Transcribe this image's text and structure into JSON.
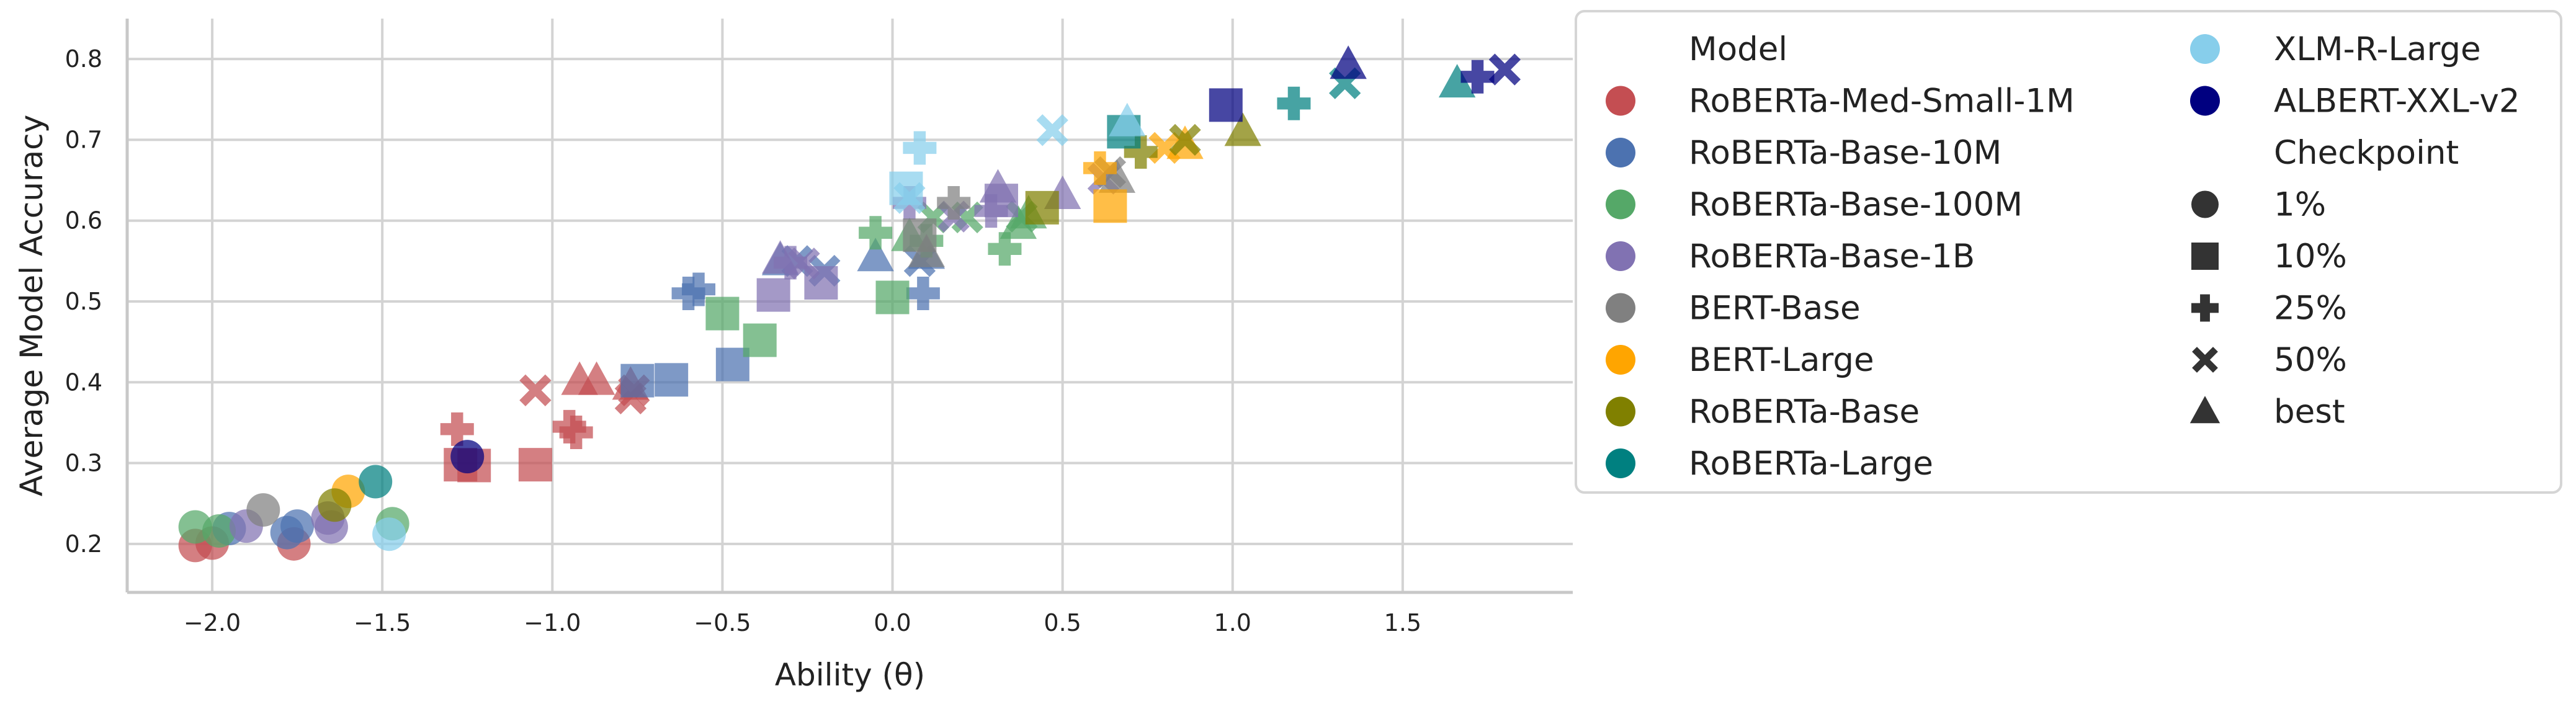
{
  "chart_data": {
    "type": "scatter",
    "xlabel": "Ability (θ)",
    "ylabel": "Average Model Accuracy",
    "xlim": [
      -2.25,
      2.0
    ],
    "ylim": [
      0.14,
      0.85
    ],
    "xticks": [
      -2.0,
      -1.5,
      -1.0,
      -0.5,
      0.0,
      0.5,
      1.0,
      1.5
    ],
    "xtick_labels": [
      "−2.0",
      "−1.5",
      "−1.0",
      "−0.5",
      "0.0",
      "0.5",
      "1.0",
      "1.5"
    ],
    "yticks": [
      0.2,
      0.3,
      0.4,
      0.5,
      0.6,
      0.7,
      0.8
    ],
    "ytick_labels": [
      "0.2",
      "0.3",
      "0.4",
      "0.5",
      "0.6",
      "0.7",
      "0.8"
    ],
    "grid": true,
    "legend": {
      "placement": "right",
      "model_title": "Model",
      "checkpoint_title": "Checkpoint",
      "models": [
        {
          "name": "RoBERTa-Med-Small-1M",
          "color": "#c44e52"
        },
        {
          "name": "RoBERTa-Base-10M",
          "color": "#4c72b0"
        },
        {
          "name": "RoBERTa-Base-100M",
          "color": "#55a868"
        },
        {
          "name": "RoBERTa-Base-1B",
          "color": "#8172b2"
        },
        {
          "name": "BERT-Base",
          "color": "#808080"
        },
        {
          "name": "BERT-Large",
          "color": "#ffa500"
        },
        {
          "name": "RoBERTa-Base",
          "color": "#808000"
        },
        {
          "name": "RoBERTa-Large",
          "color": "#008080"
        },
        {
          "name": "XLM-R-Large",
          "color": "#87ceeb"
        },
        {
          "name": "ALBERT-XXL-v2",
          "color": "#000080"
        }
      ],
      "checkpoints": [
        {
          "name": "1%",
          "marker": "circle"
        },
        {
          "name": "10%",
          "marker": "square"
        },
        {
          "name": "25%",
          "marker": "plus"
        },
        {
          "name": "50%",
          "marker": "x"
        },
        {
          "name": "best",
          "marker": "triangle"
        }
      ]
    },
    "series": [
      {
        "name": "RoBERTa-Med-Small-1M",
        "color": "#c44e52",
        "points": [
          {
            "x": -2.05,
            "y": 0.198,
            "m": "circle"
          },
          {
            "x": -2.0,
            "y": 0.201,
            "m": "circle"
          },
          {
            "x": -1.76,
            "y": 0.2,
            "m": "circle"
          },
          {
            "x": -1.27,
            "y": 0.298,
            "m": "square"
          },
          {
            "x": -1.23,
            "y": 0.297,
            "m": "square"
          },
          {
            "x": -1.05,
            "y": 0.298,
            "m": "square"
          },
          {
            "x": -1.28,
            "y": 0.342,
            "m": "plus"
          },
          {
            "x": -0.95,
            "y": 0.345,
            "m": "plus"
          },
          {
            "x": -0.93,
            "y": 0.338,
            "m": "plus"
          },
          {
            "x": -1.05,
            "y": 0.39,
            "m": "x"
          },
          {
            "x": -0.77,
            "y": 0.38,
            "m": "x"
          },
          {
            "x": -0.76,
            "y": 0.39,
            "m": "x"
          },
          {
            "x": -0.92,
            "y": 0.402,
            "m": "triangle"
          },
          {
            "x": -0.87,
            "y": 0.402,
            "m": "triangle"
          },
          {
            "x": -0.77,
            "y": 0.396,
            "m": "triangle"
          }
        ]
      },
      {
        "name": "RoBERTa-Base-10M",
        "color": "#4c72b0",
        "points": [
          {
            "x": -1.95,
            "y": 0.219,
            "m": "circle"
          },
          {
            "x": -1.78,
            "y": 0.214,
            "m": "circle"
          },
          {
            "x": -1.75,
            "y": 0.222,
            "m": "circle"
          },
          {
            "x": -0.75,
            "y": 0.402,
            "m": "square"
          },
          {
            "x": -0.65,
            "y": 0.403,
            "m": "square"
          },
          {
            "x": -0.47,
            "y": 0.422,
            "m": "square"
          },
          {
            "x": -0.6,
            "y": 0.51,
            "m": "plus"
          },
          {
            "x": -0.57,
            "y": 0.515,
            "m": "plus"
          },
          {
            "x": 0.09,
            "y": 0.51,
            "m": "plus"
          },
          {
            "x": -0.28,
            "y": 0.55,
            "m": "x"
          },
          {
            "x": -0.2,
            "y": 0.538,
            "m": "x"
          },
          {
            "x": 0.08,
            "y": 0.55,
            "m": "x"
          },
          {
            "x": -0.33,
            "y": 0.55,
            "m": "triangle"
          },
          {
            "x": -0.05,
            "y": 0.555,
            "m": "triangle"
          },
          {
            "x": 0.1,
            "y": 0.558,
            "m": "triangle"
          }
        ]
      },
      {
        "name": "RoBERTa-Base-100M",
        "color": "#55a868",
        "points": [
          {
            "x": -2.05,
            "y": 0.221,
            "m": "circle"
          },
          {
            "x": -1.98,
            "y": 0.216,
            "m": "circle"
          },
          {
            "x": -1.47,
            "y": 0.225,
            "m": "circle"
          },
          {
            "x": -0.5,
            "y": 0.485,
            "m": "square"
          },
          {
            "x": -0.39,
            "y": 0.452,
            "m": "square"
          },
          {
            "x": 0.0,
            "y": 0.505,
            "m": "square"
          },
          {
            "x": -0.05,
            "y": 0.585,
            "m": "plus"
          },
          {
            "x": 0.1,
            "y": 0.575,
            "m": "plus"
          },
          {
            "x": 0.33,
            "y": 0.565,
            "m": "plus"
          },
          {
            "x": 0.12,
            "y": 0.604,
            "m": "x"
          },
          {
            "x": 0.22,
            "y": 0.604,
            "m": "x"
          },
          {
            "x": 0.38,
            "y": 0.605,
            "m": "x"
          },
          {
            "x": 0.05,
            "y": 0.58,
            "m": "triangle"
          },
          {
            "x": 0.37,
            "y": 0.595,
            "m": "triangle"
          },
          {
            "x": 0.4,
            "y": 0.608,
            "m": "triangle"
          }
        ]
      },
      {
        "name": "RoBERTa-Base-1B",
        "color": "#8172b2",
        "points": [
          {
            "x": -1.9,
            "y": 0.222,
            "m": "circle"
          },
          {
            "x": -1.65,
            "y": 0.221,
            "m": "circle"
          },
          {
            "x": -1.66,
            "y": 0.232,
            "m": "circle"
          },
          {
            "x": -0.35,
            "y": 0.508,
            "m": "square"
          },
          {
            "x": -0.21,
            "y": 0.523,
            "m": "square"
          },
          {
            "x": 0.32,
            "y": 0.625,
            "m": "square"
          },
          {
            "x": -0.3,
            "y": 0.548,
            "m": "plus"
          },
          {
            "x": 0.05,
            "y": 0.622,
            "m": "plus"
          },
          {
            "x": 0.29,
            "y": 0.612,
            "m": "plus"
          },
          {
            "x": -0.26,
            "y": 0.547,
            "m": "x"
          },
          {
            "x": 0.18,
            "y": 0.605,
            "m": "x"
          },
          {
            "x": 0.62,
            "y": 0.652,
            "m": "x"
          },
          {
            "x": -0.33,
            "y": 0.552,
            "m": "triangle"
          },
          {
            "x": 0.31,
            "y": 0.64,
            "m": "triangle"
          },
          {
            "x": 0.5,
            "y": 0.632,
            "m": "triangle"
          }
        ]
      },
      {
        "name": "BERT-Base",
        "color": "#808080",
        "points": [
          {
            "x": -1.85,
            "y": 0.242,
            "m": "circle"
          },
          {
            "x": 0.08,
            "y": 0.582,
            "m": "square"
          },
          {
            "x": 0.18,
            "y": 0.622,
            "m": "plus"
          },
          {
            "x": 0.64,
            "y": 0.66,
            "m": "x"
          },
          {
            "x": 0.1,
            "y": 0.56,
            "m": "triangle"
          },
          {
            "x": 0.66,
            "y": 0.652,
            "m": "triangle"
          }
        ]
      },
      {
        "name": "BERT-Large",
        "color": "#ffa500",
        "points": [
          {
            "x": -1.6,
            "y": 0.265,
            "m": "circle"
          },
          {
            "x": 0.64,
            "y": 0.618,
            "m": "square"
          },
          {
            "x": 0.61,
            "y": 0.665,
            "m": "plus"
          },
          {
            "x": 0.8,
            "y": 0.69,
            "m": "x"
          },
          {
            "x": 0.86,
            "y": 0.694,
            "m": "triangle"
          }
        ]
      },
      {
        "name": "RoBERTa-Base",
        "color": "#808000",
        "points": [
          {
            "x": -1.64,
            "y": 0.248,
            "m": "circle"
          },
          {
            "x": 0.44,
            "y": 0.616,
            "m": "square"
          },
          {
            "x": 0.73,
            "y": 0.685,
            "m": "plus"
          },
          {
            "x": 0.86,
            "y": 0.7,
            "m": "x"
          },
          {
            "x": 1.03,
            "y": 0.71,
            "m": "triangle"
          }
        ]
      },
      {
        "name": "RoBERTa-Large",
        "color": "#008080",
        "points": [
          {
            "x": -1.52,
            "y": 0.277,
            "m": "circle"
          },
          {
            "x": 0.68,
            "y": 0.71,
            "m": "square"
          },
          {
            "x": 1.18,
            "y": 0.745,
            "m": "plus"
          },
          {
            "x": 1.33,
            "y": 0.77,
            "m": "x"
          },
          {
            "x": 1.66,
            "y": 0.77,
            "m": "triangle"
          }
        ]
      },
      {
        "name": "XLM-R-Large",
        "color": "#87ceeb",
        "points": [
          {
            "x": -1.48,
            "y": 0.212,
            "m": "circle"
          },
          {
            "x": 0.04,
            "y": 0.64,
            "m": "square"
          },
          {
            "x": 0.08,
            "y": 0.69,
            "m": "plus"
          },
          {
            "x": 0.05,
            "y": 0.628,
            "m": "x"
          },
          {
            "x": 0.47,
            "y": 0.712,
            "m": "x"
          },
          {
            "x": 0.69,
            "y": 0.722,
            "m": "triangle"
          }
        ]
      },
      {
        "name": "ALBERT-XXL-v2",
        "color": "#000080",
        "points": [
          {
            "x": -1.25,
            "y": 0.308,
            "m": "circle"
          },
          {
            "x": 0.98,
            "y": 0.743,
            "m": "square"
          },
          {
            "x": 1.72,
            "y": 0.778,
            "m": "plus"
          },
          {
            "x": 1.8,
            "y": 0.787,
            "m": "x"
          },
          {
            "x": 1.34,
            "y": 0.793,
            "m": "triangle"
          }
        ]
      }
    ]
  }
}
